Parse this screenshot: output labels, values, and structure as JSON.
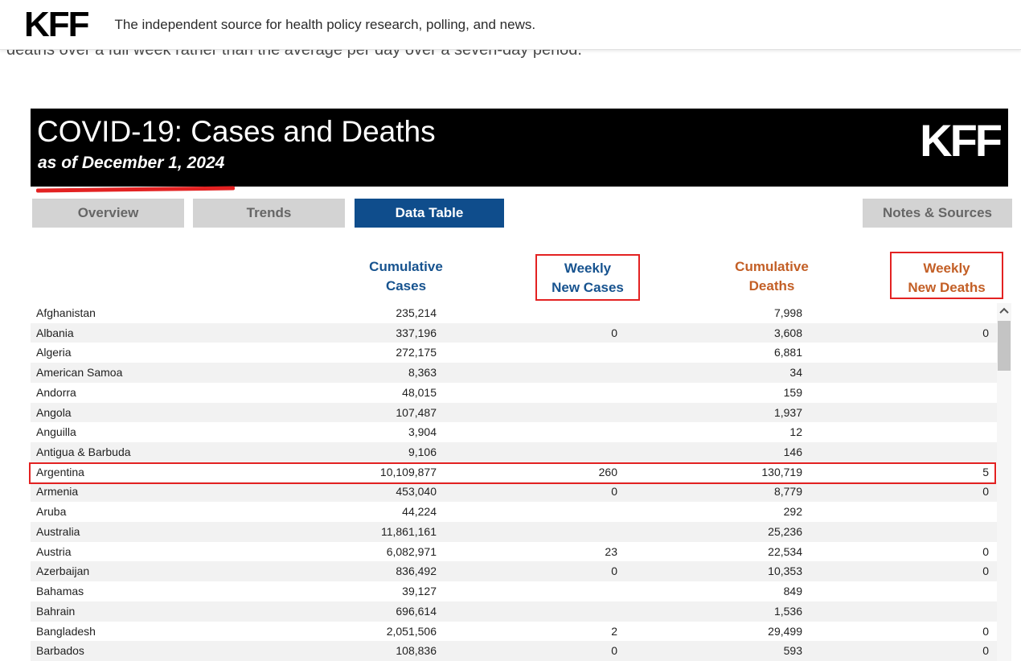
{
  "site_header": {
    "logo": "KFF",
    "tagline": "The independent source for health policy research, polling, and news."
  },
  "intro_text": "deaths over a full week rather than the average per day over a seven-day period.",
  "banner": {
    "title": "COVID-19: Cases and Deaths",
    "subtitle": "as of December 1, 2024",
    "logo": "KFF"
  },
  "tabs": [
    {
      "label": "Overview",
      "active": false
    },
    {
      "label": "Trends",
      "active": false
    },
    {
      "label": "Data Table",
      "active": true
    },
    {
      "label": "Notes & Sources",
      "active": false
    }
  ],
  "colors": {
    "header_blue": "#17538f",
    "header_orange": "#c35f26",
    "annotation_red": "#e32222",
    "active_tab_bg": "#0f4d8c",
    "inactive_tab_bg": "#d3d3d3",
    "inactive_tab_text": "#666666",
    "row_stripe": "#f2f2f2",
    "banner_bg": "#000000"
  },
  "table": {
    "columns": [
      {
        "line1": "Cumulative",
        "line2": "Cases",
        "color_role": "blue",
        "red_boxed": false
      },
      {
        "line1": "Weekly",
        "line2": "New Cases",
        "color_role": "blue",
        "red_boxed": true
      },
      {
        "line1": "Cumulative",
        "line2": "Deaths",
        "color_role": "orange",
        "red_boxed": false
      },
      {
        "line1": "Weekly",
        "line2": "New Deaths",
        "color_role": "orange",
        "red_boxed": true
      }
    ],
    "rows": [
      {
        "country": "Afghanistan",
        "cumulative_cases": "235,214",
        "weekly_new_cases": "",
        "cumulative_deaths": "7,998",
        "weekly_new_deaths": "",
        "red_boxed": false
      },
      {
        "country": "Albania",
        "cumulative_cases": "337,196",
        "weekly_new_cases": "0",
        "cumulative_deaths": "3,608",
        "weekly_new_deaths": "0",
        "red_boxed": false
      },
      {
        "country": "Algeria",
        "cumulative_cases": "272,175",
        "weekly_new_cases": "",
        "cumulative_deaths": "6,881",
        "weekly_new_deaths": "",
        "red_boxed": false
      },
      {
        "country": "American Samoa",
        "cumulative_cases": "8,363",
        "weekly_new_cases": "",
        "cumulative_deaths": "34",
        "weekly_new_deaths": "",
        "red_boxed": false
      },
      {
        "country": "Andorra",
        "cumulative_cases": "48,015",
        "weekly_new_cases": "",
        "cumulative_deaths": "159",
        "weekly_new_deaths": "",
        "red_boxed": false
      },
      {
        "country": "Angola",
        "cumulative_cases": "107,487",
        "weekly_new_cases": "",
        "cumulative_deaths": "1,937",
        "weekly_new_deaths": "",
        "red_boxed": false
      },
      {
        "country": "Anguilla",
        "cumulative_cases": "3,904",
        "weekly_new_cases": "",
        "cumulative_deaths": "12",
        "weekly_new_deaths": "",
        "red_boxed": false
      },
      {
        "country": "Antigua & Barbuda",
        "cumulative_cases": "9,106",
        "weekly_new_cases": "",
        "cumulative_deaths": "146",
        "weekly_new_deaths": "",
        "red_boxed": false
      },
      {
        "country": "Argentina",
        "cumulative_cases": "10,109,877",
        "weekly_new_cases": "260",
        "cumulative_deaths": "130,719",
        "weekly_new_deaths": "5",
        "red_boxed": true
      },
      {
        "country": "Armenia",
        "cumulative_cases": "453,040",
        "weekly_new_cases": "0",
        "cumulative_deaths": "8,779",
        "weekly_new_deaths": "0",
        "red_boxed": false
      },
      {
        "country": "Aruba",
        "cumulative_cases": "44,224",
        "weekly_new_cases": "",
        "cumulative_deaths": "292",
        "weekly_new_deaths": "",
        "red_boxed": false
      },
      {
        "country": "Australia",
        "cumulative_cases": "11,861,161",
        "weekly_new_cases": "",
        "cumulative_deaths": "25,236",
        "weekly_new_deaths": "",
        "red_boxed": false
      },
      {
        "country": "Austria",
        "cumulative_cases": "6,082,971",
        "weekly_new_cases": "23",
        "cumulative_deaths": "22,534",
        "weekly_new_deaths": "0",
        "red_boxed": false
      },
      {
        "country": "Azerbaijan",
        "cumulative_cases": "836,492",
        "weekly_new_cases": "0",
        "cumulative_deaths": "10,353",
        "weekly_new_deaths": "0",
        "red_boxed": false
      },
      {
        "country": "Bahamas",
        "cumulative_cases": "39,127",
        "weekly_new_cases": "",
        "cumulative_deaths": "849",
        "weekly_new_deaths": "",
        "red_boxed": false
      },
      {
        "country": "Bahrain",
        "cumulative_cases": "696,614",
        "weekly_new_cases": "",
        "cumulative_deaths": "1,536",
        "weekly_new_deaths": "",
        "red_boxed": false
      },
      {
        "country": "Bangladesh",
        "cumulative_cases": "2,051,506",
        "weekly_new_cases": "2",
        "cumulative_deaths": "29,499",
        "weekly_new_deaths": "0",
        "red_boxed": false
      },
      {
        "country": "Barbados",
        "cumulative_cases": "108,836",
        "weekly_new_cases": "0",
        "cumulative_deaths": "593",
        "weekly_new_deaths": "0",
        "red_boxed": false
      }
    ]
  }
}
